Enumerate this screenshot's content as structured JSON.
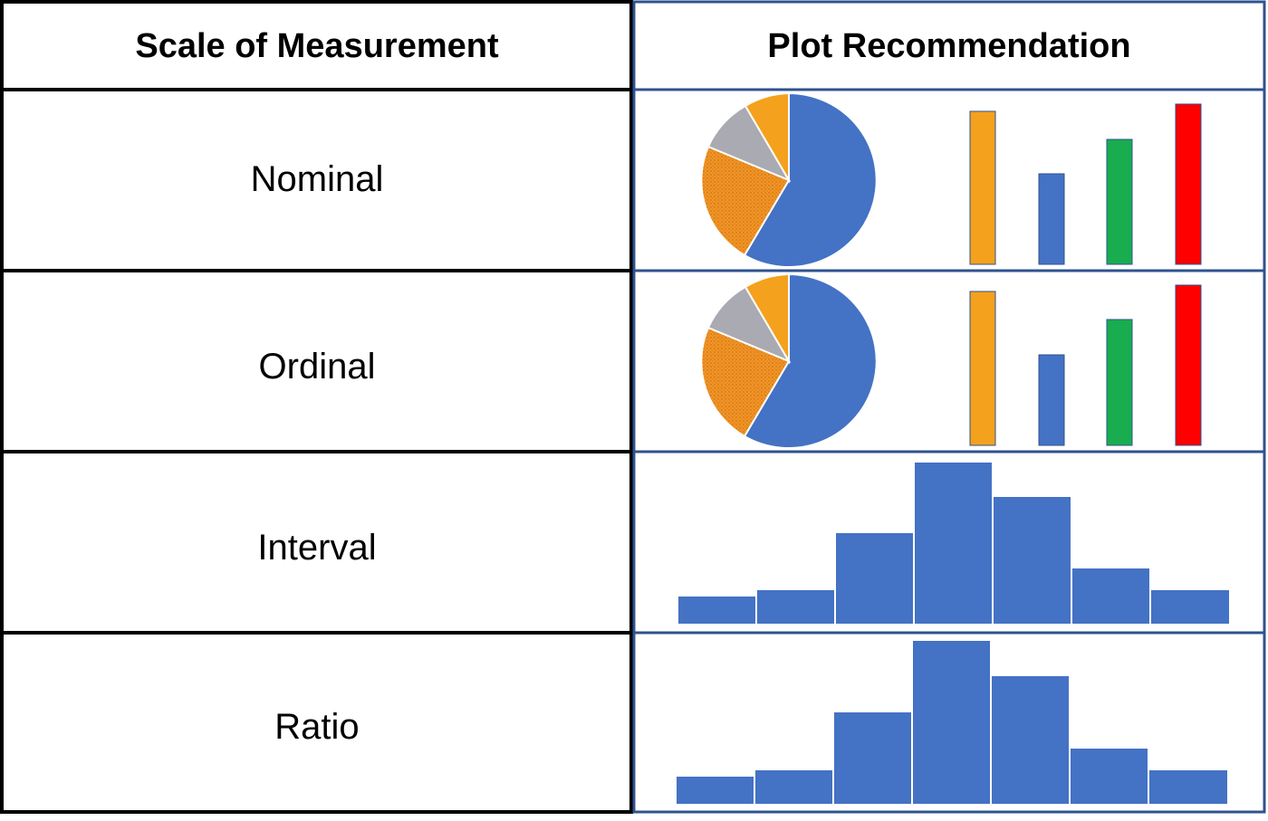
{
  "table": {
    "headers": {
      "col1": "Scale of Measurement",
      "col2": "Plot Recommendation"
    },
    "rows": [
      {
        "scale": "Nominal",
        "plot": "pie-and-bar"
      },
      {
        "scale": "Ordinal",
        "plot": "pie-and-bar"
      },
      {
        "scale": "Interval",
        "plot": "histogram"
      },
      {
        "scale": "Ratio",
        "plot": "histogram"
      }
    ]
  },
  "colors": {
    "border_black": "#000000",
    "border_blue": "#2F528F",
    "blue": "#4472C4",
    "orange": "#F4A11D",
    "gray": "#A9AAB2",
    "green": "#18AD4E",
    "red": "#FF0000",
    "pie_orange_dotted": "#F39425"
  },
  "pie_slices_fraction": [
    {
      "name": "blue",
      "fraction": 0.6
    },
    {
      "name": "orange-dotted",
      "fraction": 0.25
    },
    {
      "name": "gray",
      "fraction": 0.09
    },
    {
      "name": "orange",
      "fraction": 0.06
    }
  ],
  "bar_values_relative": [
    {
      "name": "orange",
      "value": 0.94
    },
    {
      "name": "blue",
      "value": 0.56
    },
    {
      "name": "green",
      "value": 0.77
    },
    {
      "name": "red",
      "value": 1.0
    }
  ],
  "histogram_values_relative": [
    0.17,
    0.21,
    0.56,
    1.0,
    0.78,
    0.34,
    0.21
  ]
}
